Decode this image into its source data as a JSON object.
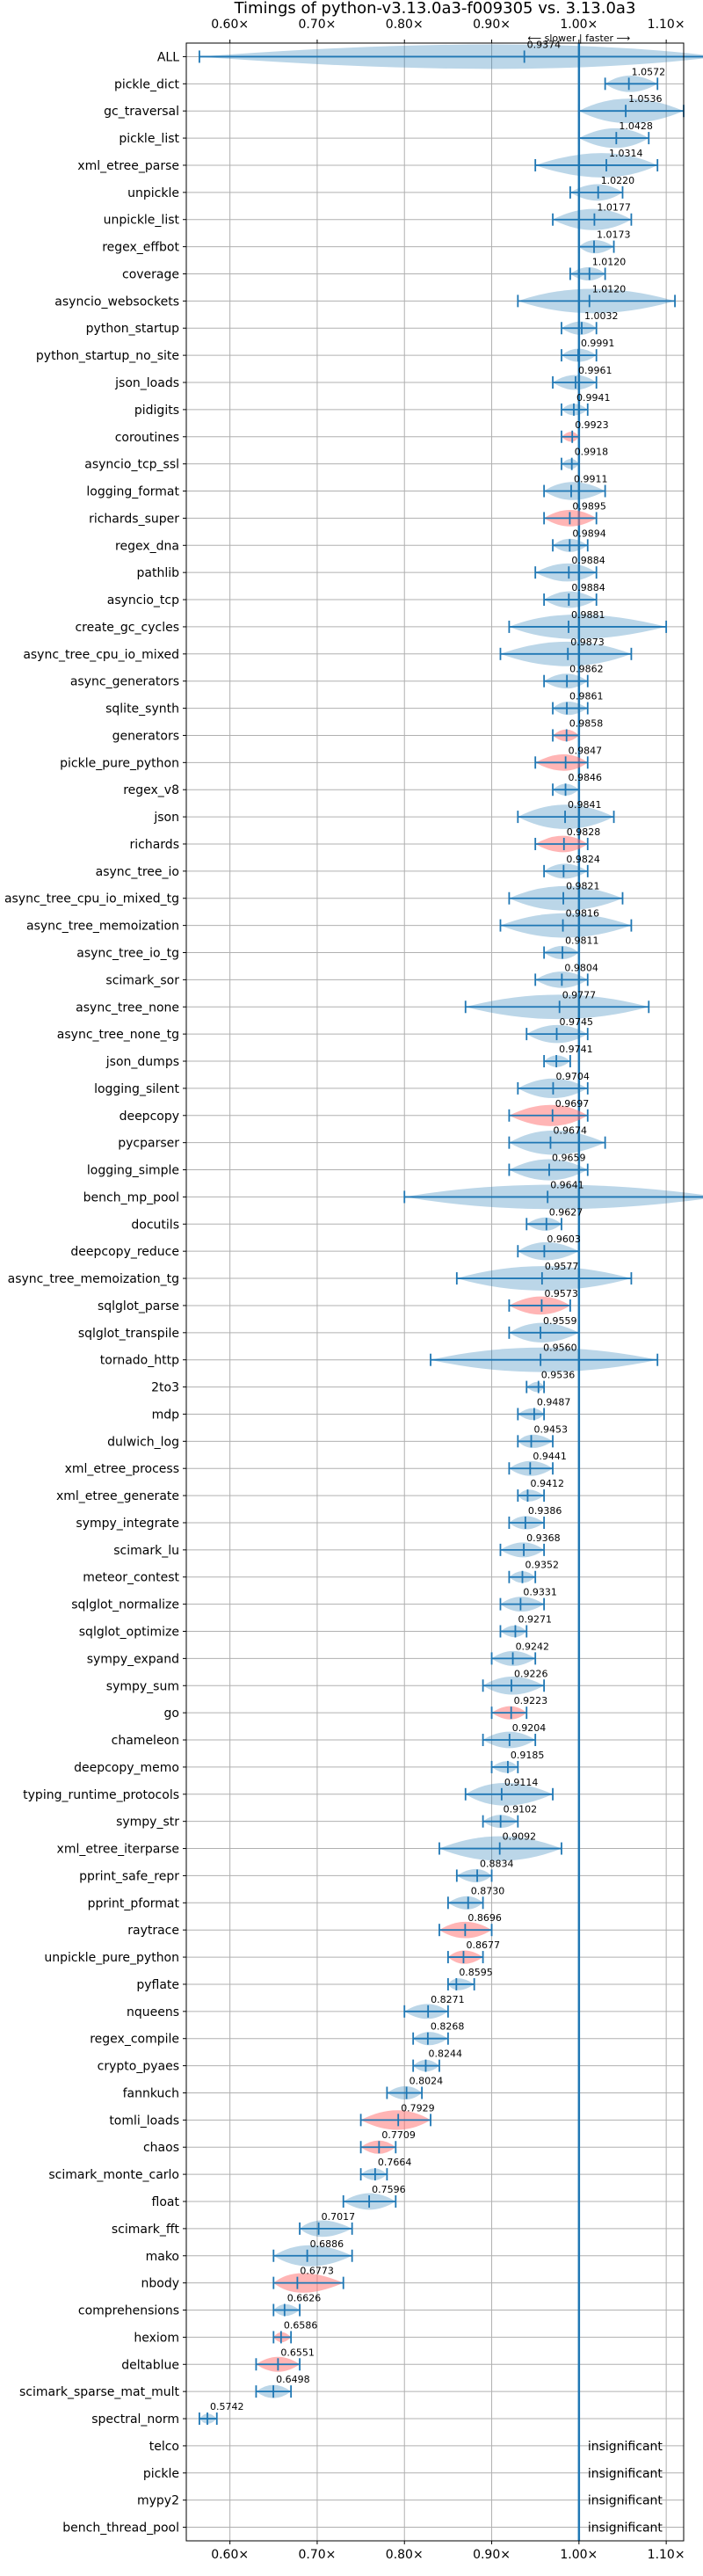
{
  "title": "Timings of python-v3.13.0a3-f009305 vs. 3.13.0a3",
  "direction_label": "⟵ slower | faster ⟶",
  "insignificant_label": "insignificant",
  "colors": {
    "axis": "#1f77b4",
    "insignificant_violin": "#1f77b4",
    "regression_violin": "#ff6b6b"
  },
  "chart_data": {
    "type": "violin",
    "title": "Timings of python-v3.13.0a3-f009305 vs. 3.13.0a3",
    "xlabel": "",
    "ylabel": "",
    "xlim": [
      0.55,
      1.12
    ],
    "xticks": [
      0.6,
      0.7,
      0.8,
      0.9,
      1.0,
      1.1
    ],
    "xtick_labels": [
      "0.60×",
      "0.70×",
      "0.80×",
      "0.90×",
      "1.00×",
      "1.10×"
    ],
    "grid": true,
    "benchmarks": [
      {
        "name": "ALL",
        "value": 0.9374,
        "min": 0.565,
        "max": 1.16,
        "reg": false
      },
      {
        "name": "pickle_dict",
        "value": 1.0572,
        "min": 1.03,
        "max": 1.09,
        "reg": false
      },
      {
        "name": "gc_traversal",
        "value": 1.0536,
        "min": 1.0,
        "max": 1.12,
        "reg": false
      },
      {
        "name": "pickle_list",
        "value": 1.0428,
        "min": 1.0,
        "max": 1.08,
        "reg": false
      },
      {
        "name": "xml_etree_parse",
        "value": 1.0314,
        "min": 0.95,
        "max": 1.09,
        "reg": false
      },
      {
        "name": "unpickle",
        "value": 1.022,
        "min": 0.99,
        "max": 1.05,
        "reg": false
      },
      {
        "name": "unpickle_list",
        "value": 1.0177,
        "min": 0.97,
        "max": 1.06,
        "reg": false
      },
      {
        "name": "regex_effbot",
        "value": 1.0173,
        "min": 1.0,
        "max": 1.04,
        "reg": false
      },
      {
        "name": "coverage",
        "value": 1.012,
        "min": 0.99,
        "max": 1.03,
        "reg": false
      },
      {
        "name": "asyncio_websockets",
        "value": 1.012,
        "min": 0.93,
        "max": 1.11,
        "reg": false
      },
      {
        "name": "python_startup",
        "value": 1.0032,
        "min": 0.98,
        "max": 1.02,
        "reg": false
      },
      {
        "name": "python_startup_no_site",
        "value": 0.9991,
        "min": 0.98,
        "max": 1.02,
        "reg": false
      },
      {
        "name": "json_loads",
        "value": 0.9961,
        "min": 0.97,
        "max": 1.02,
        "reg": false
      },
      {
        "name": "pidigits",
        "value": 0.9941,
        "min": 0.98,
        "max": 1.01,
        "reg": false
      },
      {
        "name": "coroutines",
        "value": 0.9923,
        "min": 0.98,
        "max": 1.0,
        "reg": true
      },
      {
        "name": "asyncio_tcp_ssl",
        "value": 0.9918,
        "min": 0.98,
        "max": 1.0,
        "reg": false
      },
      {
        "name": "logging_format",
        "value": 0.9911,
        "min": 0.96,
        "max": 1.03,
        "reg": false
      },
      {
        "name": "richards_super",
        "value": 0.9895,
        "min": 0.96,
        "max": 1.02,
        "reg": true
      },
      {
        "name": "regex_dna",
        "value": 0.9894,
        "min": 0.97,
        "max": 1.01,
        "reg": false
      },
      {
        "name": "pathlib",
        "value": 0.9884,
        "min": 0.95,
        "max": 1.02,
        "reg": false
      },
      {
        "name": "asyncio_tcp",
        "value": 0.9884,
        "min": 0.96,
        "max": 1.02,
        "reg": false
      },
      {
        "name": "create_gc_cycles",
        "value": 0.9881,
        "min": 0.92,
        "max": 1.1,
        "reg": false
      },
      {
        "name": "async_tree_cpu_io_mixed",
        "value": 0.9873,
        "min": 0.91,
        "max": 1.06,
        "reg": false
      },
      {
        "name": "async_generators",
        "value": 0.9862,
        "min": 0.96,
        "max": 1.01,
        "reg": false
      },
      {
        "name": "sqlite_synth",
        "value": 0.9861,
        "min": 0.97,
        "max": 1.01,
        "reg": false
      },
      {
        "name": "generators",
        "value": 0.9858,
        "min": 0.97,
        "max": 1.0,
        "reg": true
      },
      {
        "name": "pickle_pure_python",
        "value": 0.9847,
        "min": 0.95,
        "max": 1.01,
        "reg": true
      },
      {
        "name": "regex_v8",
        "value": 0.9846,
        "min": 0.97,
        "max": 1.0,
        "reg": false
      },
      {
        "name": "json",
        "value": 0.9841,
        "min": 0.93,
        "max": 1.04,
        "reg": false
      },
      {
        "name": "richards",
        "value": 0.9828,
        "min": 0.95,
        "max": 1.01,
        "reg": true
      },
      {
        "name": "async_tree_io",
        "value": 0.9824,
        "min": 0.96,
        "max": 1.01,
        "reg": false
      },
      {
        "name": "async_tree_cpu_io_mixed_tg",
        "value": 0.9821,
        "min": 0.92,
        "max": 1.05,
        "reg": false
      },
      {
        "name": "async_tree_memoization",
        "value": 0.9816,
        "min": 0.91,
        "max": 1.06,
        "reg": false
      },
      {
        "name": "async_tree_io_tg",
        "value": 0.9811,
        "min": 0.96,
        "max": 1.0,
        "reg": false
      },
      {
        "name": "scimark_sor",
        "value": 0.9804,
        "min": 0.95,
        "max": 1.01,
        "reg": false
      },
      {
        "name": "async_tree_none",
        "value": 0.9777,
        "min": 0.87,
        "max": 1.08,
        "reg": false
      },
      {
        "name": "async_tree_none_tg",
        "value": 0.9745,
        "min": 0.94,
        "max": 1.01,
        "reg": false
      },
      {
        "name": "json_dumps",
        "value": 0.9741,
        "min": 0.96,
        "max": 0.99,
        "reg": false
      },
      {
        "name": "logging_silent",
        "value": 0.9704,
        "min": 0.93,
        "max": 1.01,
        "reg": false
      },
      {
        "name": "deepcopy",
        "value": 0.9697,
        "min": 0.92,
        "max": 1.01,
        "reg": true
      },
      {
        "name": "pycparser",
        "value": 0.9674,
        "min": 0.92,
        "max": 1.03,
        "reg": false
      },
      {
        "name": "logging_simple",
        "value": 0.9659,
        "min": 0.92,
        "max": 1.01,
        "reg": false
      },
      {
        "name": "bench_mp_pool",
        "value": 0.9641,
        "min": 0.8,
        "max": 1.16,
        "reg": false
      },
      {
        "name": "docutils",
        "value": 0.9627,
        "min": 0.94,
        "max": 0.98,
        "reg": false
      },
      {
        "name": "deepcopy_reduce",
        "value": 0.9603,
        "min": 0.93,
        "max": 1.0,
        "reg": false
      },
      {
        "name": "async_tree_memoization_tg",
        "value": 0.9577,
        "min": 0.86,
        "max": 1.06,
        "reg": false
      },
      {
        "name": "sqlglot_parse",
        "value": 0.9573,
        "min": 0.92,
        "max": 0.99,
        "reg": true
      },
      {
        "name": "sqlglot_transpile",
        "value": 0.9559,
        "min": 0.92,
        "max": 1.0,
        "reg": false
      },
      {
        "name": "tornado_http",
        "value": 0.956,
        "min": 0.83,
        "max": 1.09,
        "reg": false
      },
      {
        "name": "2to3",
        "value": 0.9536,
        "min": 0.94,
        "max": 0.96,
        "reg": false
      },
      {
        "name": "mdp",
        "value": 0.9487,
        "min": 0.93,
        "max": 0.96,
        "reg": false
      },
      {
        "name": "dulwich_log",
        "value": 0.9453,
        "min": 0.93,
        "max": 0.97,
        "reg": false
      },
      {
        "name": "xml_etree_process",
        "value": 0.9441,
        "min": 0.92,
        "max": 0.97,
        "reg": false
      },
      {
        "name": "xml_etree_generate",
        "value": 0.9412,
        "min": 0.93,
        "max": 0.96,
        "reg": false
      },
      {
        "name": "sympy_integrate",
        "value": 0.9386,
        "min": 0.92,
        "max": 0.96,
        "reg": false
      },
      {
        "name": "scimark_lu",
        "value": 0.9368,
        "min": 0.91,
        "max": 0.96,
        "reg": false
      },
      {
        "name": "meteor_contest",
        "value": 0.9352,
        "min": 0.92,
        "max": 0.95,
        "reg": false
      },
      {
        "name": "sqlglot_normalize",
        "value": 0.9331,
        "min": 0.91,
        "max": 0.96,
        "reg": false
      },
      {
        "name": "sqlglot_optimize",
        "value": 0.9271,
        "min": 0.91,
        "max": 0.94,
        "reg": false
      },
      {
        "name": "sympy_expand",
        "value": 0.9242,
        "min": 0.9,
        "max": 0.95,
        "reg": false
      },
      {
        "name": "sympy_sum",
        "value": 0.9226,
        "min": 0.89,
        "max": 0.96,
        "reg": false
      },
      {
        "name": "go",
        "value": 0.9223,
        "min": 0.9,
        "max": 0.94,
        "reg": true
      },
      {
        "name": "chameleon",
        "value": 0.9204,
        "min": 0.89,
        "max": 0.95,
        "reg": false
      },
      {
        "name": "deepcopy_memo",
        "value": 0.9185,
        "min": 0.9,
        "max": 0.93,
        "reg": false
      },
      {
        "name": "typing_runtime_protocols",
        "value": 0.9114,
        "min": 0.87,
        "max": 0.97,
        "reg": false
      },
      {
        "name": "sympy_str",
        "value": 0.9102,
        "min": 0.89,
        "max": 0.93,
        "reg": false
      },
      {
        "name": "xml_etree_iterparse",
        "value": 0.9092,
        "min": 0.84,
        "max": 0.98,
        "reg": false
      },
      {
        "name": "pprint_safe_repr",
        "value": 0.8834,
        "min": 0.86,
        "max": 0.9,
        "reg": false
      },
      {
        "name": "pprint_pformat",
        "value": 0.873,
        "min": 0.85,
        "max": 0.89,
        "reg": false
      },
      {
        "name": "raytrace",
        "value": 0.8696,
        "min": 0.84,
        "max": 0.9,
        "reg": true
      },
      {
        "name": "unpickle_pure_python",
        "value": 0.8677,
        "min": 0.85,
        "max": 0.89,
        "reg": true
      },
      {
        "name": "pyflate",
        "value": 0.8595,
        "min": 0.85,
        "max": 0.88,
        "reg": false
      },
      {
        "name": "nqueens",
        "value": 0.8271,
        "min": 0.8,
        "max": 0.85,
        "reg": false
      },
      {
        "name": "regex_compile",
        "value": 0.8268,
        "min": 0.81,
        "max": 0.85,
        "reg": false
      },
      {
        "name": "crypto_pyaes",
        "value": 0.8244,
        "min": 0.81,
        "max": 0.84,
        "reg": false
      },
      {
        "name": "fannkuch",
        "value": 0.8024,
        "min": 0.78,
        "max": 0.82,
        "reg": false
      },
      {
        "name": "tomli_loads",
        "value": 0.7929,
        "min": 0.75,
        "max": 0.83,
        "reg": true
      },
      {
        "name": "chaos",
        "value": 0.7709,
        "min": 0.75,
        "max": 0.79,
        "reg": true
      },
      {
        "name": "scimark_monte_carlo",
        "value": 0.7664,
        "min": 0.75,
        "max": 0.78,
        "reg": false
      },
      {
        "name": "float",
        "value": 0.7596,
        "min": 0.73,
        "max": 0.79,
        "reg": false
      },
      {
        "name": "scimark_fft",
        "value": 0.7017,
        "min": 0.68,
        "max": 0.74,
        "reg": false
      },
      {
        "name": "mako",
        "value": 0.6886,
        "min": 0.65,
        "max": 0.74,
        "reg": false
      },
      {
        "name": "nbody",
        "value": 0.6773,
        "min": 0.65,
        "max": 0.73,
        "reg": true
      },
      {
        "name": "comprehensions",
        "value": 0.6626,
        "min": 0.65,
        "max": 0.68,
        "reg": false
      },
      {
        "name": "hexiom",
        "value": 0.6586,
        "min": 0.65,
        "max": 0.67,
        "reg": true
      },
      {
        "name": "deltablue",
        "value": 0.6551,
        "min": 0.63,
        "max": 0.68,
        "reg": true
      },
      {
        "name": "scimark_sparse_mat_mult",
        "value": 0.6498,
        "min": 0.63,
        "max": 0.67,
        "reg": false
      },
      {
        "name": "spectral_norm",
        "value": 0.5742,
        "min": 0.565,
        "max": 0.585,
        "reg": false
      },
      {
        "name": "telco",
        "value": null,
        "min": null,
        "max": null,
        "reg": false
      },
      {
        "name": "pickle",
        "value": null,
        "min": null,
        "max": null,
        "reg": false
      },
      {
        "name": "mypy2",
        "value": null,
        "min": null,
        "max": null,
        "reg": false
      },
      {
        "name": "bench_thread_pool",
        "value": null,
        "min": null,
        "max": null,
        "reg": false
      }
    ]
  }
}
